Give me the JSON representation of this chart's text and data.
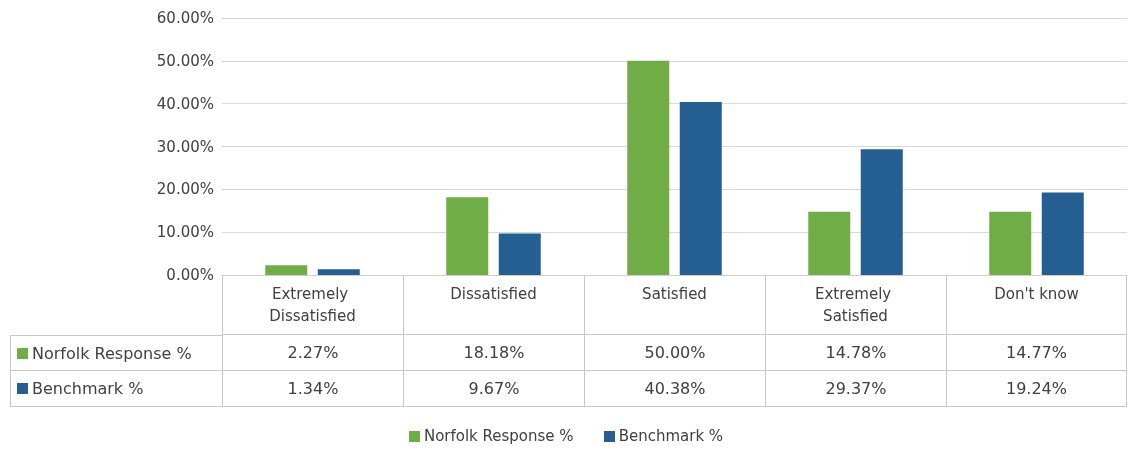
{
  "chart_data": {
    "type": "bar",
    "categories": [
      "Extremely Dissatisfied",
      "Dissatisfied",
      "Satisfied",
      "Extremely Satisfied",
      "Don't know"
    ],
    "series": [
      {
        "name": "Norfolk Response %",
        "color": "#70ad47",
        "values": [
          2.27,
          18.18,
          50.0,
          14.78,
          14.77
        ],
        "value_labels": [
          "2.27%",
          "18.18%",
          "50.00%",
          "14.78%",
          "14.77%"
        ]
      },
      {
        "name": "Benchmark %",
        "color": "#255e91",
        "values": [
          1.34,
          9.67,
          40.38,
          29.37,
          19.24
        ],
        "value_labels": [
          "1.34%",
          "9.67%",
          "40.38%",
          "29.37%",
          "19.24%"
        ]
      }
    ],
    "ylim": [
      0,
      60
    ],
    "yticks": [
      {
        "value": 0,
        "label": "0.00%"
      },
      {
        "value": 10,
        "label": "10.00%"
      },
      {
        "value": 20,
        "label": "20.00%"
      },
      {
        "value": 30,
        "label": "30.00%"
      },
      {
        "value": 40,
        "label": "40.00%"
      },
      {
        "value": 50,
        "label": "50.00%"
      },
      {
        "value": 60,
        "label": "60.00%"
      }
    ],
    "grid": "y",
    "legend": "bottom"
  }
}
